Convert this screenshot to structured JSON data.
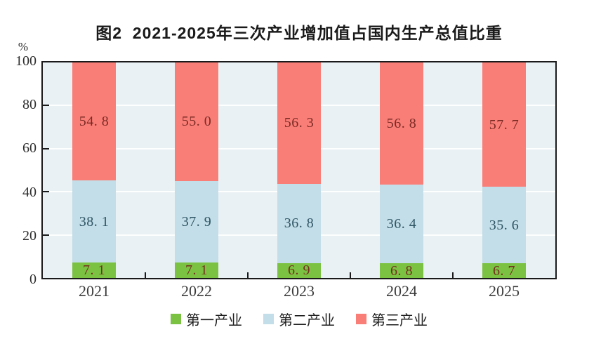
{
  "title": "图2  2021-2025年三次产业增加值占国内生产总值比重",
  "y_axis": {
    "unit": "%",
    "ticks": [
      "100",
      "80",
      "60",
      "40",
      "20",
      "0"
    ],
    "tick_values": [
      100,
      80,
      60,
      40,
      20,
      0
    ]
  },
  "chart_data": {
    "type": "bar",
    "stacked": true,
    "title": "图2  2021-2025年三次产业增加值占国内生产总值比重",
    "xlabel": "",
    "ylabel": "%",
    "ylim": [
      0,
      100
    ],
    "grid": true,
    "gridline_values": [
      20,
      40,
      60,
      80
    ],
    "legend_position": "bottom",
    "plot_background": "#e9f1f4",
    "categories": [
      "2021",
      "2022",
      "2023",
      "2024",
      "2025"
    ],
    "series": [
      {
        "key": "primary-industry",
        "name": "第一产业",
        "color": "#7cc242",
        "label_color": "#74301f",
        "values": [
          7.1,
          7.1,
          6.9,
          6.8,
          6.7
        ],
        "labels": [
          "7. 1",
          "7. 1",
          "6. 9",
          "6. 8",
          "6. 7"
        ]
      },
      {
        "key": "secondary-industry",
        "name": "第二产业",
        "color": "#c3dee8",
        "label_color": "#2f5565",
        "values": [
          38.1,
          37.9,
          36.8,
          36.4,
          35.6
        ],
        "labels": [
          "38. 1",
          "37. 9",
          "36. 8",
          "36. 4",
          "35. 6"
        ]
      },
      {
        "key": "tertiary-industry",
        "name": "第三产业",
        "color": "#fa7e78",
        "label_color": "#7a2b24",
        "values": [
          54.8,
          55.0,
          56.3,
          56.8,
          57.7
        ],
        "labels": [
          "54. 8",
          "55. 0",
          "56. 3",
          "56. 8",
          "57. 7"
        ]
      }
    ]
  },
  "legend": {
    "items": [
      {
        "label": "第一产业",
        "color": "#7cc242"
      },
      {
        "label": "第二产业",
        "color": "#c3dee8"
      },
      {
        "label": "第三产业",
        "color": "#fa7e78"
      }
    ]
  }
}
